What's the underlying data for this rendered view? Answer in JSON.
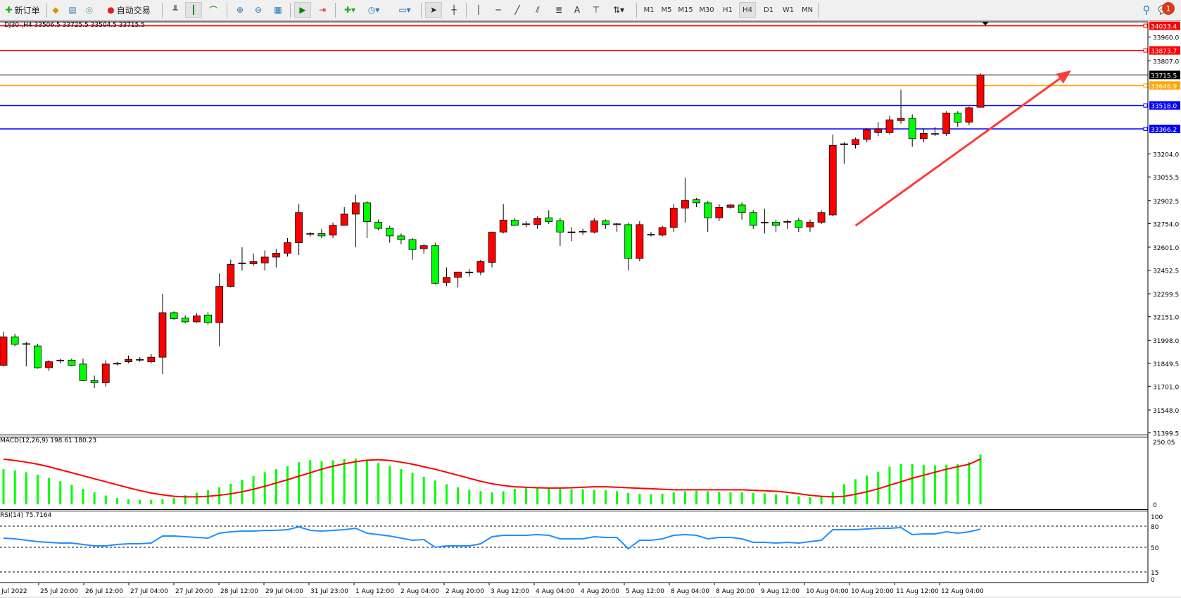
{
  "toolbar": {
    "new_order": "新订单",
    "auto_trading": "自动交易",
    "timeframes": [
      "M1",
      "M5",
      "M15",
      "M30",
      "H1",
      "H4",
      "D1",
      "W1",
      "MN"
    ],
    "selected_timeframe": "H4",
    "notification_count": "1"
  },
  "chart": {
    "info": "DJ30-,H4  33506.5 33725.5 33504.5 33715.5",
    "symbol": "DJ30-",
    "timeframe": "H4",
    "colors": {
      "bull": "#ff0000",
      "bear": "#00ff00",
      "grid": "#000000",
      "macd_hist": "#00ff00",
      "macd_signal": "#ff0000",
      "rsi": "#1e90ff"
    },
    "price_ticks": [
      "33960.0",
      "33807.0",
      "33204.0",
      "33055.5",
      "32902.5",
      "32754.0",
      "32601.0",
      "32452.5",
      "32299.5",
      "32151.0",
      "31998.0",
      "31849.5",
      "31701.0",
      "31548.0",
      "31399.5"
    ],
    "price_tick_values": [
      33960.0,
      33807.0,
      33204.0,
      33055.5,
      32902.5,
      32754.0,
      32601.0,
      32452.5,
      32299.5,
      32151.0,
      31998.0,
      31849.5,
      31701.0,
      31548.0,
      31399.5
    ],
    "levels": [
      {
        "price": 34033.4,
        "label": "34033.4",
        "color": "#ff0000"
      },
      {
        "price": 33873.7,
        "label": "33873.7",
        "color": "#ff0000"
      },
      {
        "price": 33715.5,
        "label": "33715.5",
        "color": "#000000"
      },
      {
        "price": 33646.9,
        "label": "33646.9",
        "color": "#ffa500"
      },
      {
        "price": 33518.0,
        "label": "33518.0",
        "color": "#0000ff"
      },
      {
        "price": 33366.2,
        "label": "33366.2",
        "color": "#0000ff"
      }
    ],
    "arrow": {
      "color": "#ff3b3b",
      "from": {
        "bar": 76,
        "price": 32740
      },
      "to": {
        "bar": 95,
        "price": 33745
      }
    },
    "time_labels": [
      "Jul 2022",
      "25 Jul 20:00",
      "26 Jul 12:00",
      "27 Jul 04:00",
      "27 Jul 20:00",
      "28 Jul 12:00",
      "29 Jul 04:00",
      "31 Jul 23:00",
      "1 Aug 12:00",
      "2 Aug 04:00",
      "2 Aug 20:00",
      "3 Aug 12:00",
      "4 Aug 04:00",
      "4 Aug 20:00",
      "5 Aug 12:00",
      "8 Aug 04:00",
      "8 Aug 20:00",
      "9 Aug 12:00",
      "10 Aug 04:00",
      "10 Aug 20:00",
      "11 Aug 12:00",
      "12 Aug 04:00"
    ]
  },
  "chart_data": {
    "type": "candlestick",
    "ohlc": [
      [
        31836,
        32055,
        31830,
        32021
      ],
      [
        32021,
        32040,
        31960,
        31972
      ],
      [
        31977,
        31990,
        31830,
        31972
      ],
      [
        31962,
        31975,
        31815,
        31821
      ],
      [
        31821,
        31870,
        31800,
        31860
      ],
      [
        31865,
        31880,
        31850,
        31870
      ],
      [
        31870,
        31880,
        31830,
        31836
      ],
      [
        31845,
        31880,
        31735,
        31738
      ],
      [
        31738,
        31770,
        31690,
        31724
      ],
      [
        31724,
        31870,
        31700,
        31845
      ],
      [
        31845,
        31860,
        31835,
        31850
      ],
      [
        31860,
        31900,
        31850,
        31875
      ],
      [
        31870,
        31890,
        31860,
        31875
      ],
      [
        31860,
        31910,
        31850,
        31889
      ],
      [
        31889,
        32300,
        31780,
        32177
      ],
      [
        32177,
        32185,
        32130,
        32138
      ],
      [
        32143,
        32160,
        32110,
        32118
      ],
      [
        32118,
        32175,
        32110,
        32157
      ],
      [
        32162,
        32180,
        32100,
        32113
      ],
      [
        32113,
        32430,
        31960,
        32347
      ],
      [
        32347,
        32520,
        32340,
        32489
      ],
      [
        32494,
        32600,
        32450,
        32499
      ],
      [
        32494,
        32560,
        32480,
        32508
      ],
      [
        32499,
        32580,
        32450,
        32537
      ],
      [
        32537,
        32590,
        32470,
        32562
      ],
      [
        32562,
        32660,
        32540,
        32630
      ],
      [
        32630,
        32880,
        32550,
        32825
      ],
      [
        32684,
        32700,
        32670,
        32689
      ],
      [
        32689,
        32720,
        32660,
        32674
      ],
      [
        32679,
        32760,
        32660,
        32742
      ],
      [
        32742,
        32860,
        32740,
        32815
      ],
      [
        32815,
        32940,
        32600,
        32888
      ],
      [
        32888,
        32900,
        32660,
        32767
      ],
      [
        32762,
        32780,
        32710,
        32723
      ],
      [
        32723,
        32740,
        32630,
        32674
      ],
      [
        32674,
        32690,
        32620,
        32650
      ],
      [
        32650,
        32660,
        32520,
        32586
      ],
      [
        32591,
        32620,
        32560,
        32611
      ],
      [
        32611,
        32630,
        32360,
        32367
      ],
      [
        32372,
        32470,
        32350,
        32406
      ],
      [
        32406,
        32440,
        32340,
        32440
      ],
      [
        32435,
        32460,
        32410,
        32440
      ],
      [
        32440,
        32520,
        32420,
        32508
      ],
      [
        32503,
        32700,
        32470,
        32698
      ],
      [
        32698,
        32880,
        32690,
        32776
      ],
      [
        32776,
        32790,
        32740,
        32742
      ],
      [
        32747,
        32770,
        32730,
        32752
      ],
      [
        32747,
        32800,
        32720,
        32786
      ],
      [
        32791,
        32840,
        32750,
        32767
      ],
      [
        32771,
        32790,
        32610,
        32698
      ],
      [
        32694,
        32730,
        32640,
        32700
      ],
      [
        32698,
        32720,
        32680,
        32704
      ],
      [
        32698,
        32790,
        32690,
        32771
      ],
      [
        32771,
        32780,
        32720,
        32747
      ],
      [
        32747,
        32760,
        32700,
        32752
      ],
      [
        32747,
        32760,
        32450,
        32528
      ],
      [
        32528,
        32770,
        32510,
        32747
      ],
      [
        32679,
        32700,
        32670,
        32684
      ],
      [
        32679,
        32740,
        32670,
        32728
      ],
      [
        32728,
        32880,
        32700,
        32854
      ],
      [
        32854,
        33050,
        32760,
        32903
      ],
      [
        32908,
        32920,
        32860,
        32888
      ],
      [
        32888,
        32900,
        32700,
        32791
      ],
      [
        32791,
        32880,
        32770,
        32859
      ],
      [
        32859,
        32880,
        32850,
        32874
      ],
      [
        32874,
        32890,
        32780,
        32825
      ],
      [
        32825,
        32840,
        32720,
        32742
      ],
      [
        32757,
        32850,
        32690,
        32762
      ],
      [
        32762,
        32780,
        32700,
        32742
      ],
      [
        32762,
        32780,
        32720,
        32767
      ],
      [
        32771,
        32790,
        32700,
        32728
      ],
      [
        32732,
        32780,
        32700,
        32762
      ],
      [
        32762,
        32840,
        32750,
        32825
      ],
      [
        32810,
        33330,
        32800,
        33259
      ],
      [
        33264,
        33280,
        33140,
        33270
      ],
      [
        33264,
        33310,
        33240,
        33298
      ],
      [
        33298,
        33370,
        33280,
        33361
      ],
      [
        33342,
        33410,
        33320,
        33366
      ],
      [
        33342,
        33450,
        33330,
        33425
      ],
      [
        33420,
        33620,
        33400,
        33434
      ],
      [
        33434,
        33460,
        33250,
        33303
      ],
      [
        33303,
        33370,
        33280,
        33337
      ],
      [
        33332,
        33380,
        33320,
        33336
      ],
      [
        33337,
        33480,
        33320,
        33469
      ],
      [
        33469,
        33480,
        33380,
        33410
      ],
      [
        33410,
        33510,
        33390,
        33503
      ],
      [
        33506.5,
        33725.5,
        33504.5,
        33715.5
      ]
    ],
    "ylim": [
      31399.5,
      34033.4
    ],
    "macd": {
      "label": "MACD(12,26,9) 198.61 180.23",
      "ticks": [
        "250.05",
        "0"
      ],
      "ylim": [
        0,
        250.05
      ],
      "histogram": [
        140,
        135,
        128,
        118,
        105,
        92,
        78,
        62,
        48,
        35,
        25,
        20,
        18,
        18,
        20,
        26,
        36,
        46,
        56,
        68,
        82,
        98,
        112,
        128,
        140,
        152,
        168,
        176,
        172,
        176,
        180,
        182,
        175,
        165,
        152,
        140,
        126,
        110,
        95,
        80,
        68,
        58,
        52,
        48,
        52,
        62,
        66,
        68,
        66,
        62,
        60,
        60,
        58,
        56,
        52,
        46,
        42,
        40,
        42,
        48,
        52,
        54,
        52,
        50,
        48,
        48,
        46,
        44,
        40,
        36,
        32,
        28,
        30,
        50,
        80,
        100,
        115,
        130,
        150,
        160,
        160,
        158,
        155,
        158,
        160,
        168,
        198.61
      ],
      "signal": [
        180,
        175,
        168,
        160,
        150,
        138,
        126,
        114,
        102,
        90,
        78,
        66,
        55,
        45,
        38,
        32,
        30,
        30,
        32,
        36,
        42,
        50,
        60,
        72,
        85,
        98,
        112,
        126,
        140,
        152,
        162,
        170,
        176,
        178,
        175,
        168,
        160,
        150,
        140,
        128,
        116,
        104,
        92,
        82,
        75,
        70,
        68,
        66,
        65,
        65,
        66,
        68,
        70,
        70,
        68,
        66,
        64,
        62,
        60,
        58,
        58,
        58,
        58,
        58,
        58,
        58,
        56,
        54,
        52,
        48,
        42,
        36,
        32,
        30,
        32,
        40,
        50,
        62,
        76,
        90,
        104,
        116,
        128,
        140,
        150,
        160,
        180.23
      ]
    },
    "rsi": {
      "label": "RSI(14) 75.7164",
      "ticks": [
        "100",
        "80",
        "50",
        "15",
        "0"
      ],
      "levels": [
        80,
        50,
        15
      ],
      "ylim": [
        0,
        100
      ],
      "values": [
        63,
        62,
        60,
        58,
        57,
        56,
        56,
        54,
        52,
        52,
        54,
        55,
        55,
        56,
        66,
        66,
        65,
        64,
        63,
        70,
        72,
        73,
        73,
        74,
        74,
        75,
        79,
        74,
        73,
        74,
        75,
        77,
        70,
        68,
        66,
        63,
        60,
        61,
        50,
        52,
        52,
        52,
        55,
        65,
        67,
        67,
        67,
        68,
        67,
        62,
        62,
        62,
        65,
        64,
        64,
        48,
        60,
        60,
        62,
        67,
        68,
        67,
        62,
        64,
        64,
        62,
        57,
        57,
        56,
        57,
        56,
        58,
        60,
        75,
        75,
        75,
        76,
        77,
        77,
        78,
        68,
        69,
        69,
        72,
        70,
        72,
        75.7164
      ]
    }
  }
}
